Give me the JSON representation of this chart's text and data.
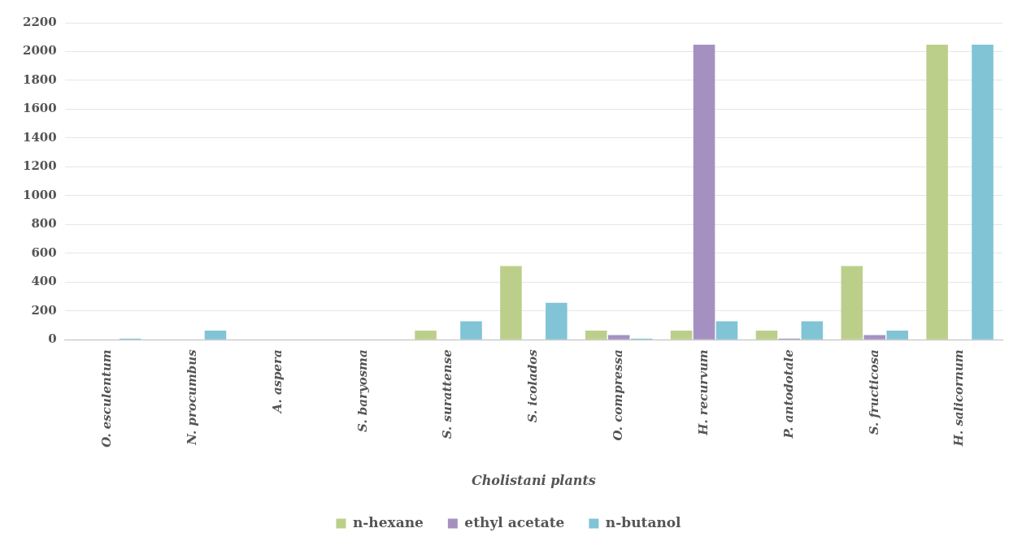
{
  "chart_data": {
    "type": "bar",
    "xlabel": "Cholistani plants",
    "categories": [
      "O. esculentum",
      "N. procumbus",
      "A. aspera",
      "S. baryosma",
      "S. surattense",
      "S. icolados",
      "O. compressa",
      "H. recurvum",
      "P. antodotale",
      "S. fructicosa",
      "H. salicornum"
    ],
    "series": [
      {
        "name": "n-hexane",
        "color": "#bccf8a",
        "values": [
          null,
          null,
          null,
          null,
          64,
          512,
          64,
          64,
          64,
          512,
          2048
        ]
      },
      {
        "name": "ethyl acetate",
        "color": "#a591c1",
        "values": [
          null,
          null,
          null,
          null,
          null,
          null,
          32,
          2048,
          8,
          32,
          null
        ]
      },
      {
        "name": "n-butanol",
        "color": "#80c4d6",
        "values": [
          8,
          64,
          null,
          null,
          128,
          256,
          8,
          128,
          128,
          64,
          2048
        ]
      }
    ],
    "ylim": [
      0,
      2200
    ],
    "yticks": [
      0,
      200,
      400,
      600,
      800,
      1000,
      1200,
      1400,
      1600,
      1800,
      2000,
      2200
    ],
    "grid": "y",
    "legend": "bottom"
  }
}
